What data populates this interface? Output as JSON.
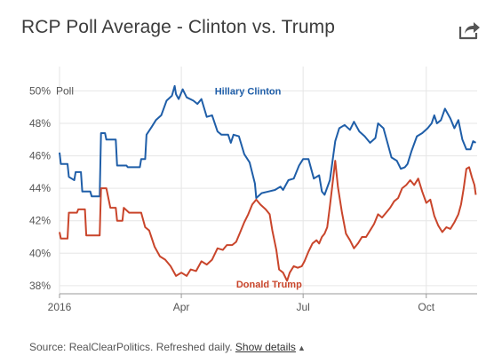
{
  "header": {
    "title": "RCP Poll Average - Clinton vs. Trump",
    "share_icon": "share-arrow-icon"
  },
  "footer": {
    "source": "Source: RealClearPolitics. Refreshed daily.",
    "details_link": "Show details",
    "caret": "▲"
  },
  "chart_data": {
    "type": "line",
    "title": "RCP Poll Average - Clinton vs. Trump",
    "y_unit_label": "Poll",
    "ylim": [
      37.5,
      51.5
    ],
    "yticks": [
      {
        "value": 38,
        "label": "38%"
      },
      {
        "value": 40,
        "label": "40%"
      },
      {
        "value": 42,
        "label": "42%"
      },
      {
        "value": 44,
        "label": "44%"
      },
      {
        "value": 46,
        "label": "46%"
      },
      {
        "value": 48,
        "label": "48%"
      },
      {
        "value": 50,
        "label": "50%"
      }
    ],
    "xlim": [
      "2016-01-01",
      "2016-11-08"
    ],
    "xticks": [
      {
        "date": "2016-01-01",
        "label": "2016"
      },
      {
        "date": "2016-04-01",
        "label": "Apr"
      },
      {
        "date": "2016-07-01",
        "label": "Jul"
      },
      {
        "date": "2016-10-01",
        "label": "Oct"
      }
    ],
    "grid": true,
    "series": [
      {
        "name": "Hillary Clinton",
        "color": "#1f5ea8",
        "label_anchor": {
          "date": "2016-04-26",
          "value": 50.0
        },
        "points": [
          [
            "2016-01-01",
            46.2
          ],
          [
            "2016-01-02",
            45.5
          ],
          [
            "2016-01-07",
            45.5
          ],
          [
            "2016-01-08",
            44.7
          ],
          [
            "2016-01-12",
            44.5
          ],
          [
            "2016-01-13",
            45.0
          ],
          [
            "2016-01-17",
            45.0
          ],
          [
            "2016-01-18",
            43.8
          ],
          [
            "2016-01-24",
            43.8
          ],
          [
            "2016-01-25",
            43.5
          ],
          [
            "2016-01-31",
            43.5
          ],
          [
            "2016-02-01",
            47.4
          ],
          [
            "2016-02-04",
            47.4
          ],
          [
            "2016-02-05",
            47.0
          ],
          [
            "2016-02-12",
            47.0
          ],
          [
            "2016-02-13",
            45.4
          ],
          [
            "2016-02-20",
            45.4
          ],
          [
            "2016-02-21",
            45.3
          ],
          [
            "2016-03-01",
            45.3
          ],
          [
            "2016-03-02",
            45.8
          ],
          [
            "2016-03-05",
            45.8
          ],
          [
            "2016-03-06",
            47.3
          ],
          [
            "2016-03-10",
            47.8
          ],
          [
            "2016-03-13",
            48.2
          ],
          [
            "2016-03-17",
            48.5
          ],
          [
            "2016-03-21",
            49.4
          ],
          [
            "2016-03-25",
            49.7
          ],
          [
            "2016-03-27",
            50.3
          ],
          [
            "2016-03-28",
            49.8
          ],
          [
            "2016-03-30",
            49.5
          ],
          [
            "2016-04-02",
            50.1
          ],
          [
            "2016-04-05",
            49.6
          ],
          [
            "2016-04-10",
            49.4
          ],
          [
            "2016-04-13",
            49.2
          ],
          [
            "2016-04-16",
            49.5
          ],
          [
            "2016-04-20",
            48.4
          ],
          [
            "2016-04-24",
            48.5
          ],
          [
            "2016-04-28",
            47.5
          ],
          [
            "2016-05-01",
            47.3
          ],
          [
            "2016-05-06",
            47.3
          ],
          [
            "2016-05-08",
            46.8
          ],
          [
            "2016-05-10",
            47.3
          ],
          [
            "2016-05-14",
            47.2
          ],
          [
            "2016-05-18",
            46.1
          ],
          [
            "2016-05-22",
            45.6
          ],
          [
            "2016-05-26",
            44.3
          ],
          [
            "2016-05-27",
            43.4
          ],
          [
            "2016-05-31",
            43.7
          ],
          [
            "2016-06-05",
            43.8
          ],
          [
            "2016-06-10",
            43.9
          ],
          [
            "2016-06-14",
            44.1
          ],
          [
            "2016-06-16",
            43.9
          ],
          [
            "2016-06-20",
            44.5
          ],
          [
            "2016-06-24",
            44.6
          ],
          [
            "2016-06-28",
            45.4
          ],
          [
            "2016-07-01",
            45.8
          ],
          [
            "2016-07-05",
            45.8
          ],
          [
            "2016-07-09",
            44.6
          ],
          [
            "2016-07-13",
            44.8
          ],
          [
            "2016-07-15",
            43.8
          ],
          [
            "2016-07-17",
            43.6
          ],
          [
            "2016-07-21",
            44.5
          ],
          [
            "2016-07-25",
            46.9
          ],
          [
            "2016-07-28",
            47.7
          ],
          [
            "2016-08-01",
            47.9
          ],
          [
            "2016-08-05",
            47.6
          ],
          [
            "2016-08-08",
            48.1
          ],
          [
            "2016-08-12",
            47.5
          ],
          [
            "2016-08-16",
            47.2
          ],
          [
            "2016-08-20",
            46.8
          ],
          [
            "2016-08-24",
            47.1
          ],
          [
            "2016-08-26",
            48.0
          ],
          [
            "2016-08-30",
            47.7
          ],
          [
            "2016-09-02",
            46.8
          ],
          [
            "2016-09-05",
            45.9
          ],
          [
            "2016-09-09",
            45.7
          ],
          [
            "2016-09-12",
            45.2
          ],
          [
            "2016-09-15",
            45.3
          ],
          [
            "2016-09-17",
            45.5
          ],
          [
            "2016-09-20",
            46.3
          ],
          [
            "2016-09-24",
            47.2
          ],
          [
            "2016-09-28",
            47.4
          ],
          [
            "2016-10-02",
            47.7
          ],
          [
            "2016-10-05",
            48.0
          ],
          [
            "2016-10-07",
            48.5
          ],
          [
            "2016-10-09",
            48.0
          ],
          [
            "2016-10-12",
            48.2
          ],
          [
            "2016-10-15",
            48.9
          ],
          [
            "2016-10-19",
            48.3
          ],
          [
            "2016-10-22",
            47.7
          ],
          [
            "2016-10-25",
            48.2
          ],
          [
            "2016-10-28",
            47.0
          ],
          [
            "2016-10-31",
            46.4
          ],
          [
            "2016-11-03",
            46.4
          ],
          [
            "2016-11-05",
            46.9
          ],
          [
            "2016-11-07",
            46.8
          ]
        ]
      },
      {
        "name": "Donald Trump",
        "color": "#c9452b",
        "label_anchor": {
          "date": "2016-05-12",
          "value": 38.1
        },
        "points": [
          [
            "2016-01-01",
            41.3
          ],
          [
            "2016-01-02",
            40.9
          ],
          [
            "2016-01-07",
            40.9
          ],
          [
            "2016-01-08",
            42.5
          ],
          [
            "2016-01-14",
            42.5
          ],
          [
            "2016-01-15",
            42.7
          ],
          [
            "2016-01-20",
            42.7
          ],
          [
            "2016-01-21",
            41.1
          ],
          [
            "2016-01-31",
            41.1
          ],
          [
            "2016-02-01",
            44.0
          ],
          [
            "2016-02-05",
            44.0
          ],
          [
            "2016-02-08",
            42.8
          ],
          [
            "2016-02-12",
            42.8
          ],
          [
            "2016-02-13",
            42.0
          ],
          [
            "2016-02-17",
            42.0
          ],
          [
            "2016-02-18",
            42.8
          ],
          [
            "2016-02-22",
            42.5
          ],
          [
            "2016-03-02",
            42.5
          ],
          [
            "2016-03-05",
            41.6
          ],
          [
            "2016-03-08",
            41.4
          ],
          [
            "2016-03-12",
            40.4
          ],
          [
            "2016-03-16",
            39.8
          ],
          [
            "2016-03-20",
            39.6
          ],
          [
            "2016-03-24",
            39.2
          ],
          [
            "2016-03-28",
            38.6
          ],
          [
            "2016-04-01",
            38.8
          ],
          [
            "2016-04-05",
            38.6
          ],
          [
            "2016-04-08",
            39.0
          ],
          [
            "2016-04-12",
            38.9
          ],
          [
            "2016-04-16",
            39.5
          ],
          [
            "2016-04-20",
            39.3
          ],
          [
            "2016-04-24",
            39.6
          ],
          [
            "2016-04-28",
            40.3
          ],
          [
            "2016-05-02",
            40.2
          ],
          [
            "2016-05-05",
            40.5
          ],
          [
            "2016-05-09",
            40.5
          ],
          [
            "2016-05-12",
            40.7
          ],
          [
            "2016-05-15",
            41.3
          ],
          [
            "2016-05-18",
            41.9
          ],
          [
            "2016-05-21",
            42.4
          ],
          [
            "2016-05-24",
            43.0
          ],
          [
            "2016-05-27",
            43.3
          ],
          [
            "2016-05-30",
            43.0
          ],
          [
            "2016-06-03",
            42.7
          ],
          [
            "2016-06-06",
            42.4
          ],
          [
            "2016-06-08",
            41.4
          ],
          [
            "2016-06-11",
            40.2
          ],
          [
            "2016-06-13",
            39.0
          ],
          [
            "2016-06-16",
            38.8
          ],
          [
            "2016-06-19",
            38.3
          ],
          [
            "2016-06-21",
            38.8
          ],
          [
            "2016-06-24",
            39.2
          ],
          [
            "2016-06-27",
            39.1
          ],
          [
            "2016-06-30",
            39.2
          ],
          [
            "2016-07-02",
            39.5
          ],
          [
            "2016-07-05",
            40.1
          ],
          [
            "2016-07-08",
            40.6
          ],
          [
            "2016-07-11",
            40.8
          ],
          [
            "2016-07-13",
            40.6
          ],
          [
            "2016-07-15",
            41.0
          ],
          [
            "2016-07-17",
            41.2
          ],
          [
            "2016-07-19",
            41.6
          ],
          [
            "2016-07-21",
            42.9
          ],
          [
            "2016-07-23",
            44.3
          ],
          [
            "2016-07-25",
            45.7
          ],
          [
            "2016-07-27",
            44.1
          ],
          [
            "2016-07-30",
            42.5
          ],
          [
            "2016-08-02",
            41.2
          ],
          [
            "2016-08-05",
            40.8
          ],
          [
            "2016-08-08",
            40.3
          ],
          [
            "2016-08-11",
            40.6
          ],
          [
            "2016-08-14",
            41.0
          ],
          [
            "2016-08-17",
            41.0
          ],
          [
            "2016-08-20",
            41.4
          ],
          [
            "2016-08-23",
            41.8
          ],
          [
            "2016-08-26",
            42.4
          ],
          [
            "2016-08-29",
            42.2
          ],
          [
            "2016-09-01",
            42.5
          ],
          [
            "2016-09-04",
            42.8
          ],
          [
            "2016-09-07",
            43.2
          ],
          [
            "2016-09-10",
            43.4
          ],
          [
            "2016-09-13",
            44.0
          ],
          [
            "2016-09-16",
            44.2
          ],
          [
            "2016-09-19",
            44.5
          ],
          [
            "2016-09-22",
            44.2
          ],
          [
            "2016-09-25",
            44.6
          ],
          [
            "2016-09-28",
            43.8
          ],
          [
            "2016-10-01",
            43.1
          ],
          [
            "2016-10-04",
            43.3
          ],
          [
            "2016-10-07",
            42.3
          ],
          [
            "2016-10-10",
            41.7
          ],
          [
            "2016-10-13",
            41.3
          ],
          [
            "2016-10-16",
            41.6
          ],
          [
            "2016-10-19",
            41.5
          ],
          [
            "2016-10-22",
            41.9
          ],
          [
            "2016-10-25",
            42.4
          ],
          [
            "2016-10-27",
            43.0
          ],
          [
            "2016-10-29",
            44.0
          ],
          [
            "2016-10-31",
            45.2
          ],
          [
            "2016-11-02",
            45.3
          ],
          [
            "2016-11-04",
            44.7
          ],
          [
            "2016-11-06",
            44.2
          ],
          [
            "2016-11-07",
            43.6
          ]
        ]
      }
    ]
  }
}
